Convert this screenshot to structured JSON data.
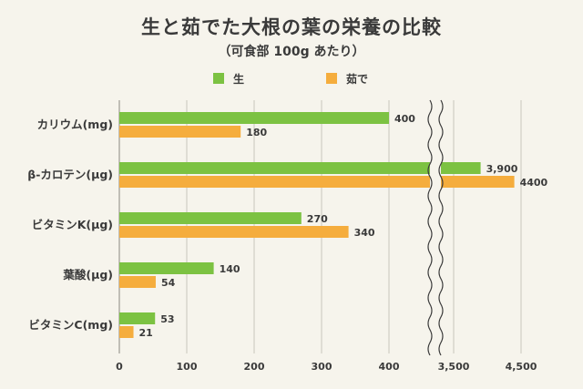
{
  "header": {
    "title": "生と茹でた大根の葉の栄養の比較",
    "subtitle": "（可食部 100g あたり）"
  },
  "chart_data": {
    "type": "bar",
    "orientation": "horizontal",
    "axis_break": {
      "from": 450,
      "to": 3200
    },
    "categories": [
      "カリウム(mg)",
      "β-カロテン(μg)",
      "ビタミンK(μg)",
      "葉酸(μg)",
      "ビタミンC(mg)"
    ],
    "series": [
      {
        "name": "生",
        "color": "#7cc242",
        "values": [
          400,
          3900,
          270,
          140,
          53
        ],
        "labels": [
          "400",
          "3,900",
          "270",
          "140",
          "53"
        ]
      },
      {
        "name": "茹で",
        "color": "#f5ad3d",
        "values": [
          180,
          4400,
          340,
          54,
          21
        ],
        "labels": [
          "180",
          "4400",
          "340",
          "54",
          "21"
        ]
      }
    ],
    "xticks": [
      {
        "value": 0,
        "label": "0"
      },
      {
        "value": 100,
        "label": "100"
      },
      {
        "value": 200,
        "label": "200"
      },
      {
        "value": 300,
        "label": "300"
      },
      {
        "value": 400,
        "label": "400"
      },
      {
        "value": 3500,
        "label": "3,500"
      },
      {
        "value": 4500,
        "label": "4,500"
      }
    ],
    "grid": true,
    "legend_position": "top"
  }
}
